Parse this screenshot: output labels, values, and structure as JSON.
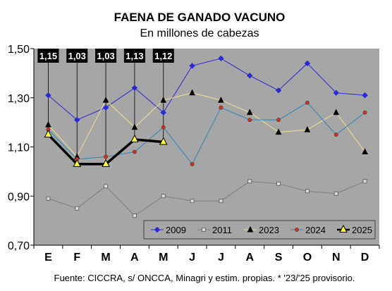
{
  "chart_data": {
    "type": "line",
    "title": "FAENA DE GANADO VACUNO",
    "subtitle": "En millones de cabezas",
    "source": "Fuente: CICCRA, s/ ONCCA, Minagri y estim. propias. * '23/'25 provisorio.",
    "categories": [
      "E",
      "F",
      "M",
      "A",
      "M",
      "J",
      "J",
      "A",
      "S",
      "O",
      "N",
      "D"
    ],
    "ylim": [
      0.7,
      1.5
    ],
    "yticks": [
      0.7,
      0.9,
      1.1,
      1.3,
      1.5
    ],
    "ytick_labels": [
      "0,70",
      "0,90",
      "1,10",
      "1,30",
      "1,50"
    ],
    "grid": false,
    "legend_position": "bottom-inside",
    "series": [
      {
        "name": "2009",
        "color": "#2b2bd6",
        "marker": "diamond",
        "values": [
          1.31,
          1.21,
          1.26,
          1.34,
          1.24,
          1.43,
          1.46,
          1.39,
          1.33,
          1.44,
          1.32,
          1.31
        ]
      },
      {
        "name": "2011",
        "color": "#7f7f7f",
        "marker": "square",
        "values": [
          0.89,
          0.85,
          0.94,
          0.82,
          0.9,
          0.88,
          0.88,
          0.96,
          0.95,
          0.92,
          0.91,
          0.96
        ]
      },
      {
        "name": "2023",
        "color": "#f2dd8c",
        "marker": "triangle",
        "values": [
          1.19,
          1.06,
          1.29,
          1.18,
          1.29,
          1.32,
          1.29,
          1.24,
          1.16,
          1.17,
          1.24,
          1.08
        ]
      },
      {
        "name": "2024",
        "color": "#2e86b8",
        "marker": "circle",
        "values": [
          1.17,
          1.05,
          1.06,
          1.08,
          1.18,
          1.03,
          1.26,
          1.21,
          1.21,
          1.28,
          1.15,
          1.24
        ]
      },
      {
        "name": "2025",
        "color": "#000000",
        "marker": "triangle-yellow",
        "values": [
          1.15,
          1.03,
          1.03,
          1.13,
          1.12,
          null,
          null,
          null,
          null,
          null,
          null,
          null
        ]
      }
    ],
    "annotations": [
      "1,15",
      "1,03",
      "1,03",
      "1,13",
      "1,12"
    ]
  }
}
